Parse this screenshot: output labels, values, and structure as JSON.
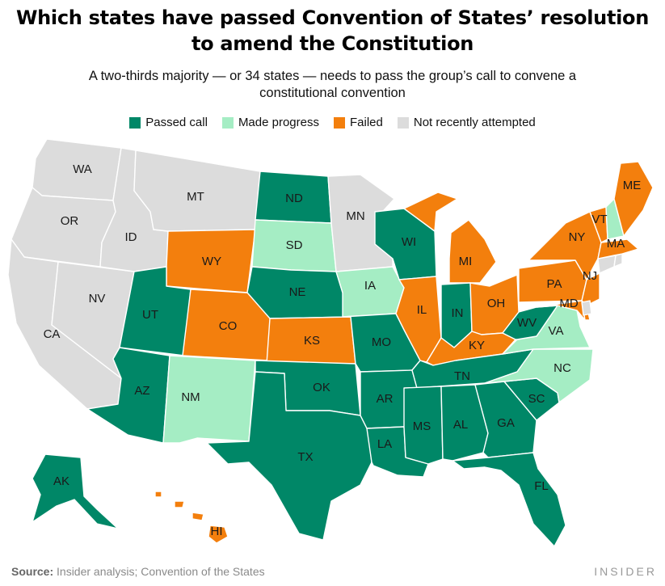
{
  "title_line1": "Which states have passed Convention of States’ resolution",
  "title_line2": "to amend the Constitution",
  "subtitle_line1": "A two-thirds majority — or 34 states — needs to pass the group’s call to convene a",
  "subtitle_line2": "constitutional convention",
  "colors": {
    "passed": "#008767",
    "progress": "#a5edc4",
    "failed": "#f37f0d",
    "none": "#dcdcdc"
  },
  "legend": [
    {
      "key": "passed",
      "label": "Passed call"
    },
    {
      "key": "progress",
      "label": "Made progress"
    },
    {
      "key": "failed",
      "label": "Failed"
    },
    {
      "key": "none",
      "label": "Not recently attempted"
    }
  ],
  "states": {
    "WA": "none",
    "OR": "none",
    "CA": "none",
    "NV": "none",
    "ID": "none",
    "MT": "none",
    "WY": "failed",
    "UT": "passed",
    "AZ": "passed",
    "CO": "failed",
    "NM": "progress",
    "ND": "passed",
    "SD": "progress",
    "NE": "passed",
    "KS": "failed",
    "OK": "passed",
    "TX": "passed",
    "MN": "none",
    "IA": "progress",
    "MO": "passed",
    "AR": "passed",
    "LA": "passed",
    "WI": "passed",
    "IL": "failed",
    "MS": "passed",
    "MI": "failed",
    "IN": "passed",
    "KY": "failed",
    "TN": "passed",
    "AL": "passed",
    "OH": "failed",
    "GA": "passed",
    "FL": "passed",
    "SC": "passed",
    "NC": "progress",
    "VA": "progress",
    "WV": "passed",
    "PA": "failed",
    "NY": "failed",
    "MD": "failed",
    "DE": "failed",
    "NJ": "failed",
    "CT": "none",
    "RI": "none",
    "MA": "failed",
    "VT": "failed",
    "NH": "progress",
    "ME": "failed",
    "AK": "passed",
    "HI": "failed",
    "DC": "none"
  },
  "labels": [
    "WA",
    "OR",
    "CA",
    "NV",
    "ID",
    "MT",
    "WY",
    "UT",
    "AZ",
    "CO",
    "NM",
    "ND",
    "SD",
    "NE",
    "KS",
    "OK",
    "TX",
    "MN",
    "IA",
    "MO",
    "AR",
    "LA",
    "WI",
    "IL",
    "MS",
    "MI",
    "IN",
    "KY",
    "TN",
    "AL",
    "OH",
    "GA",
    "FL",
    "SC",
    "NC",
    "VA",
    "WV",
    "PA",
    "NY",
    "MD",
    "NJ",
    "MA",
    "VT",
    "ME",
    "AK",
    "HI"
  ],
  "source_label": "Source:",
  "source_text": " Insider analysis; Convention of the States",
  "brand": "INSIDER"
}
